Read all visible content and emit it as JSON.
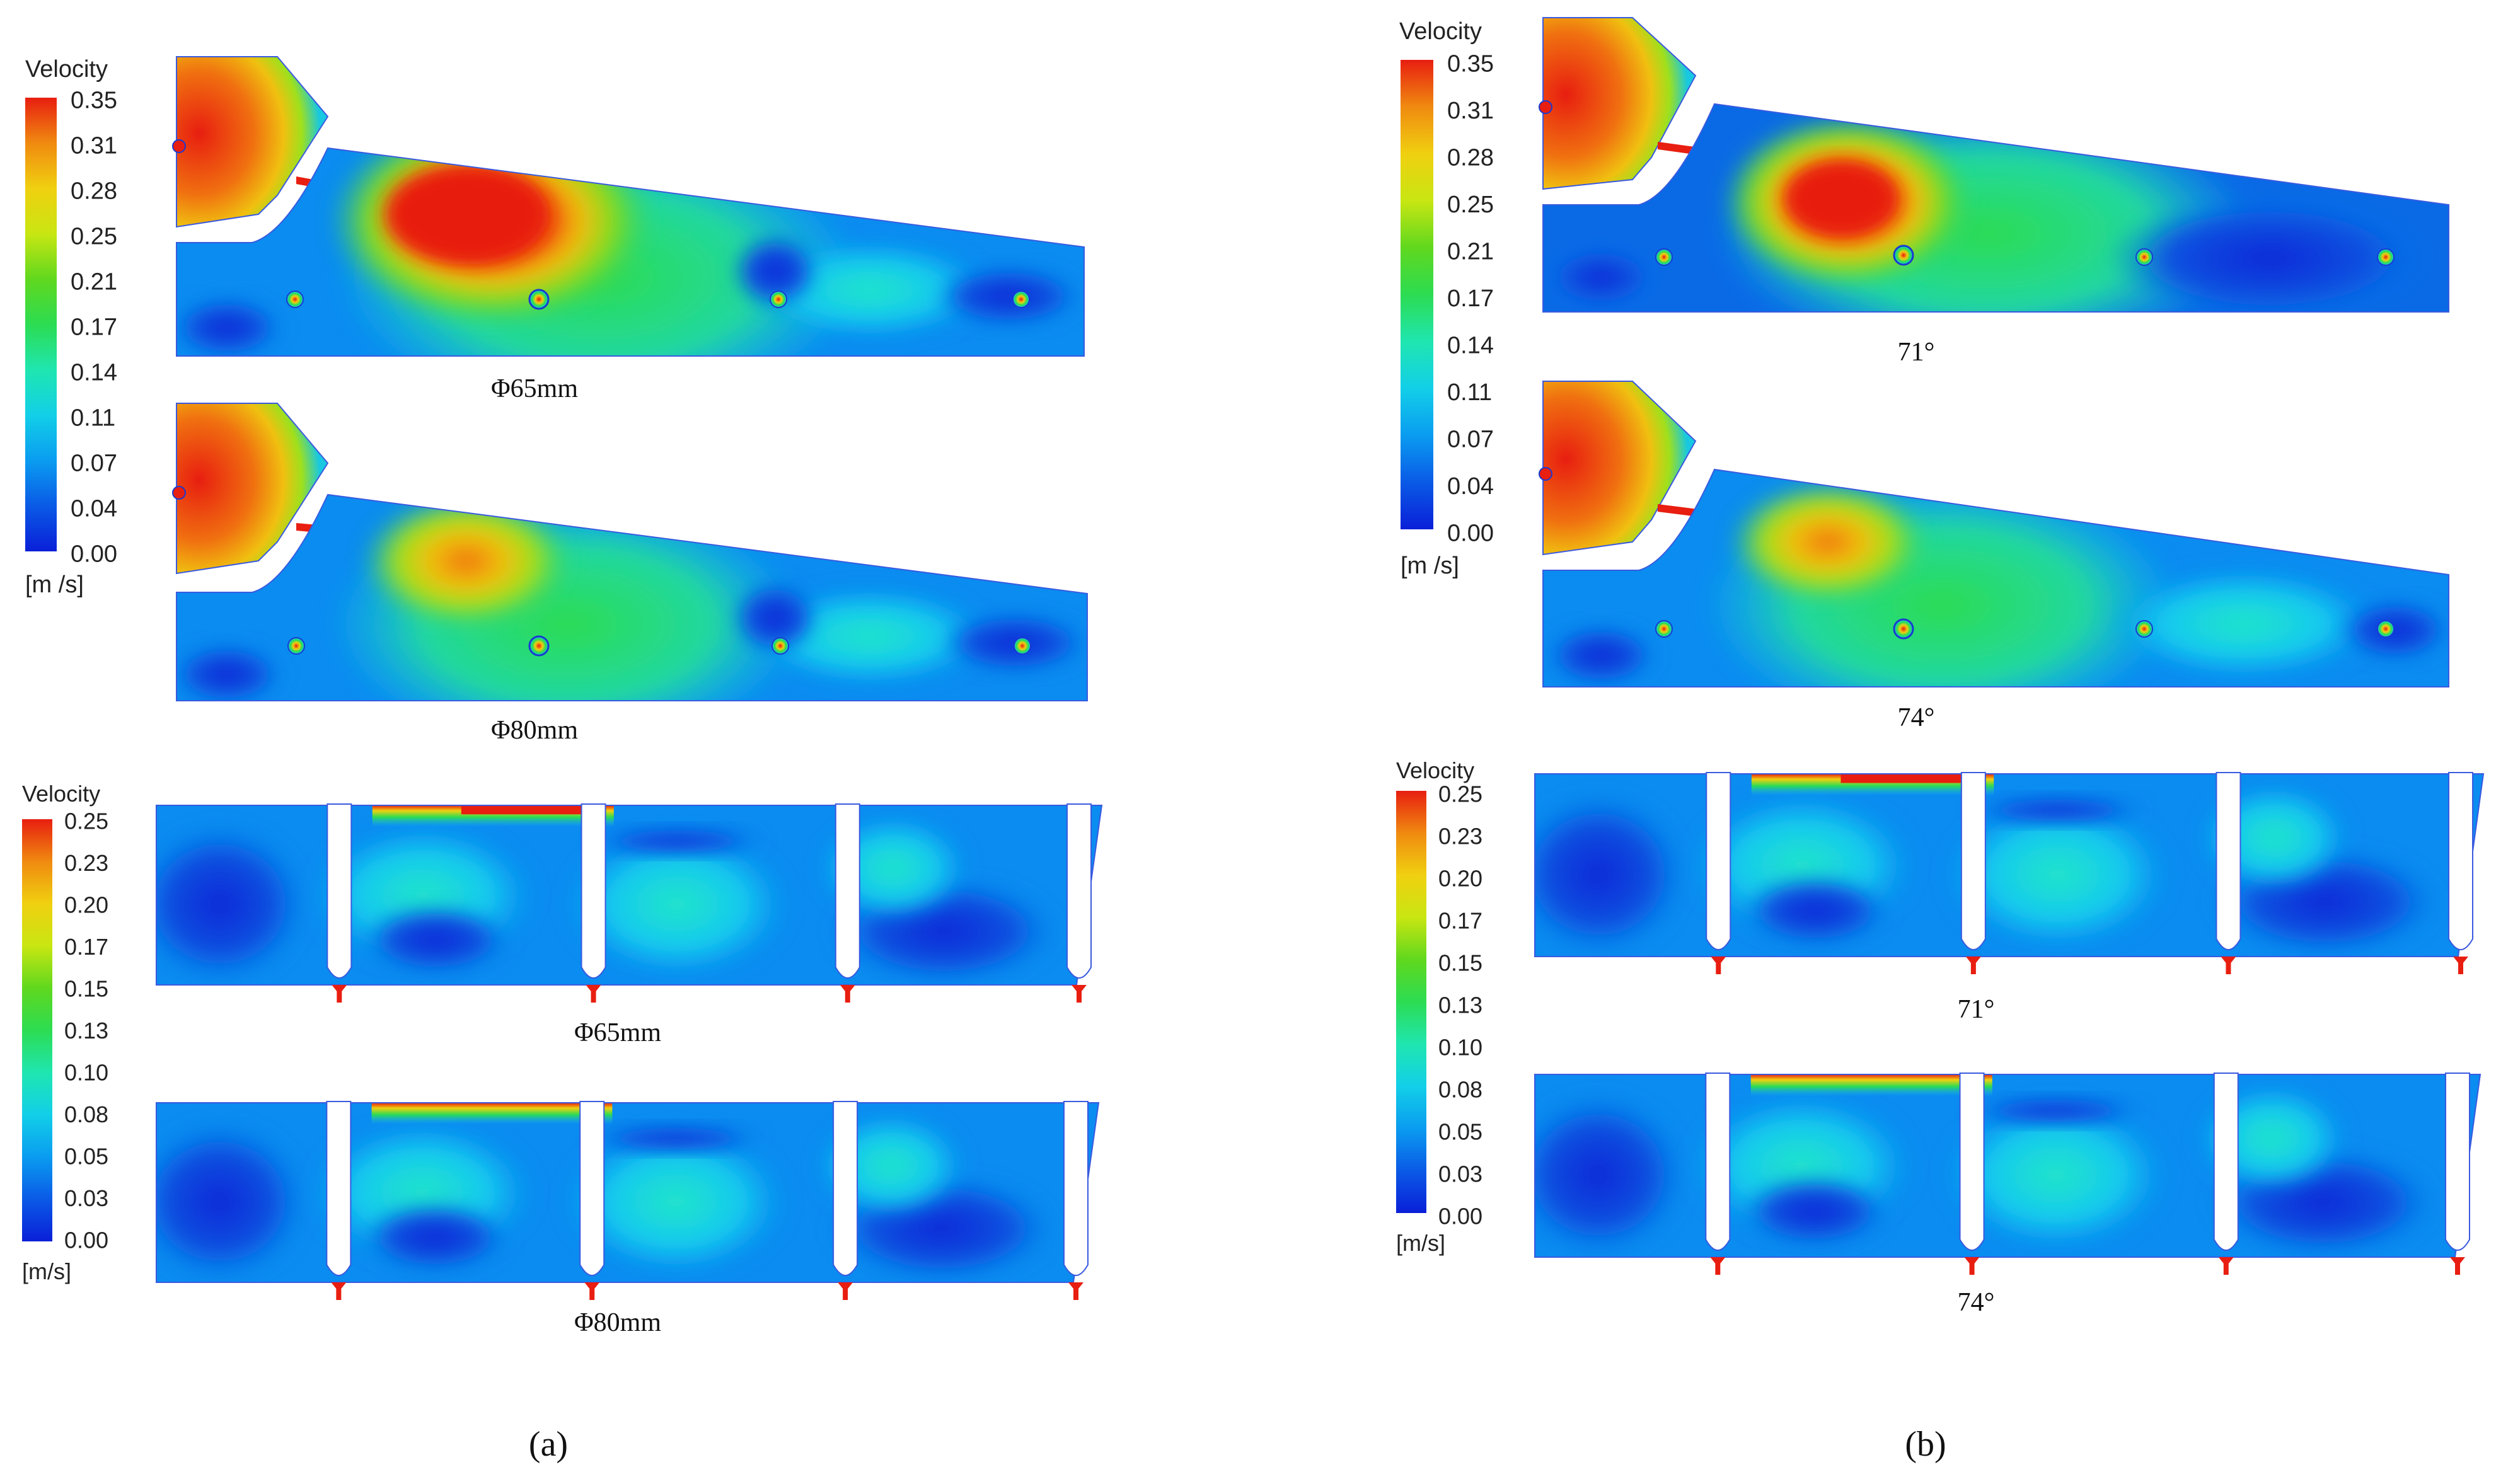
{
  "figure": {
    "panel_a_label": "(a)",
    "panel_b_label": "(b)"
  },
  "panel_a": {
    "top_legend": {
      "title": "Velocity",
      "ticks": [
        "0.35",
        "0.31",
        "0.28",
        "0.25",
        "0.21",
        "0.17",
        "0.14",
        "0.11",
        "0.07",
        "0.04",
        "0.00"
      ],
      "unit": "[m /s]"
    },
    "top_captions": [
      "Φ65mm",
      "Φ80mm"
    ],
    "bottom_legend": {
      "title": "Velocity",
      "ticks": [
        "0.25",
        "0.23",
        "0.20",
        "0.17",
        "0.15",
        "0.13",
        "0.10",
        "0.08",
        "0.05",
        "0.03",
        "0.00"
      ],
      "unit": "[m/s]"
    },
    "bottom_captions": [
      "Φ65mm",
      "Φ80mm"
    ]
  },
  "panel_b": {
    "top_legend": {
      "title": "Velocity",
      "ticks": [
        "0.35",
        "0.31",
        "0.28",
        "0.25",
        "0.21",
        "0.17",
        "0.14",
        "0.11",
        "0.07",
        "0.04",
        "0.00"
      ],
      "unit": "[m /s]"
    },
    "top_captions": [
      "71°",
      "74°"
    ],
    "bottom_legend": {
      "title": "Velocity",
      "ticks": [
        "0.25",
        "0.23",
        "0.20",
        "0.17",
        "0.15",
        "0.13",
        "0.10",
        "0.08",
        "0.05",
        "0.03",
        "0.00"
      ],
      "unit": "[m/s]"
    },
    "bottom_captions": [
      "71°",
      "74°"
    ]
  },
  "colormap": [
    "#0a1fd8",
    "#0a5ae6",
    "#0a8cf0",
    "#10c0f0",
    "#18e6d0",
    "#22e07a",
    "#3ed02a",
    "#9fe01c",
    "#e8e810",
    "#f8b010",
    "#f06810",
    "#e81e10"
  ]
}
